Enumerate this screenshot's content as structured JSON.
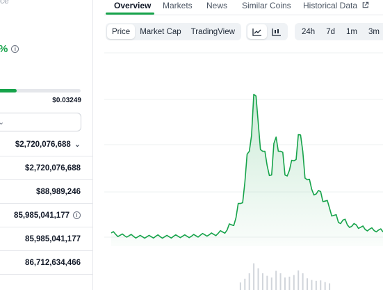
{
  "left_panel": {
    "cut_text": "ce",
    "change_percent": "%",
    "progress_fraction": 0.21,
    "range_high": "$0.03249",
    "stats": [
      {
        "value": "$2,720,076,688",
        "chevron": true,
        "info": false
      },
      {
        "value": "$2,720,076,688",
        "chevron": false,
        "info": false
      },
      {
        "value": "$88,989,246",
        "chevron": false,
        "info": false
      },
      {
        "value": "85,985,041,177",
        "chevron": false,
        "info": true
      },
      {
        "value": "85,985,041,177",
        "chevron": false,
        "info": false
      },
      {
        "value": "86,712,634,466",
        "chevron": false,
        "info": false
      }
    ]
  },
  "tabs": [
    {
      "label": "Overview",
      "active": true
    },
    {
      "label": "Markets",
      "active": false
    },
    {
      "label": "News",
      "active": false
    },
    {
      "label": "Similar Coins",
      "active": false
    },
    {
      "label": "Historical Data",
      "active": false,
      "external": true
    }
  ],
  "toolbar": {
    "chart_modes": [
      {
        "label": "Price",
        "active": true
      },
      {
        "label": "Market Cap",
        "active": false
      },
      {
        "label": "TradingView",
        "active": false
      }
    ],
    "chart_types": [
      {
        "icon": "line-chart-icon",
        "active": true
      },
      {
        "icon": "candlestick-chart-icon",
        "active": false
      }
    ],
    "time_ranges": [
      {
        "label": "24h"
      },
      {
        "label": "7d"
      },
      {
        "label": "1m"
      },
      {
        "label": "3m"
      }
    ]
  },
  "colors": {
    "accent": "#16a34a",
    "line": "#16a34a",
    "fill": "#dcfce7"
  },
  "chart_data": {
    "type": "area",
    "grid": true,
    "values": [
      0.28,
      0.25,
      0.23,
      0.22,
      0.22,
      0.21,
      0.2,
      0.2,
      0.2,
      0.2,
      0.21,
      0.2,
      0.2,
      0.2,
      0.21,
      0.21,
      0.21,
      0.21,
      0.21,
      0.22,
      0.23,
      0.24,
      0.24,
      0.25,
      0.27,
      0.3,
      0.34,
      0.45,
      0.6,
      0.9,
      1.35,
      2.0,
      3.2,
      2.6,
      2.0,
      1.7,
      1.5,
      2.3,
      2.0,
      1.5,
      1.6,
      1.8,
      2.35,
      2.0,
      1.4,
      1.2,
      1.1,
      1.15,
      0.95,
      0.8,
      0.65,
      0.5,
      0.55,
      0.45,
      0.42,
      0.45,
      0.4,
      0.35,
      0.36,
      0.33,
      0.34,
      0.3
    ],
    "ymax": 3.4
  }
}
